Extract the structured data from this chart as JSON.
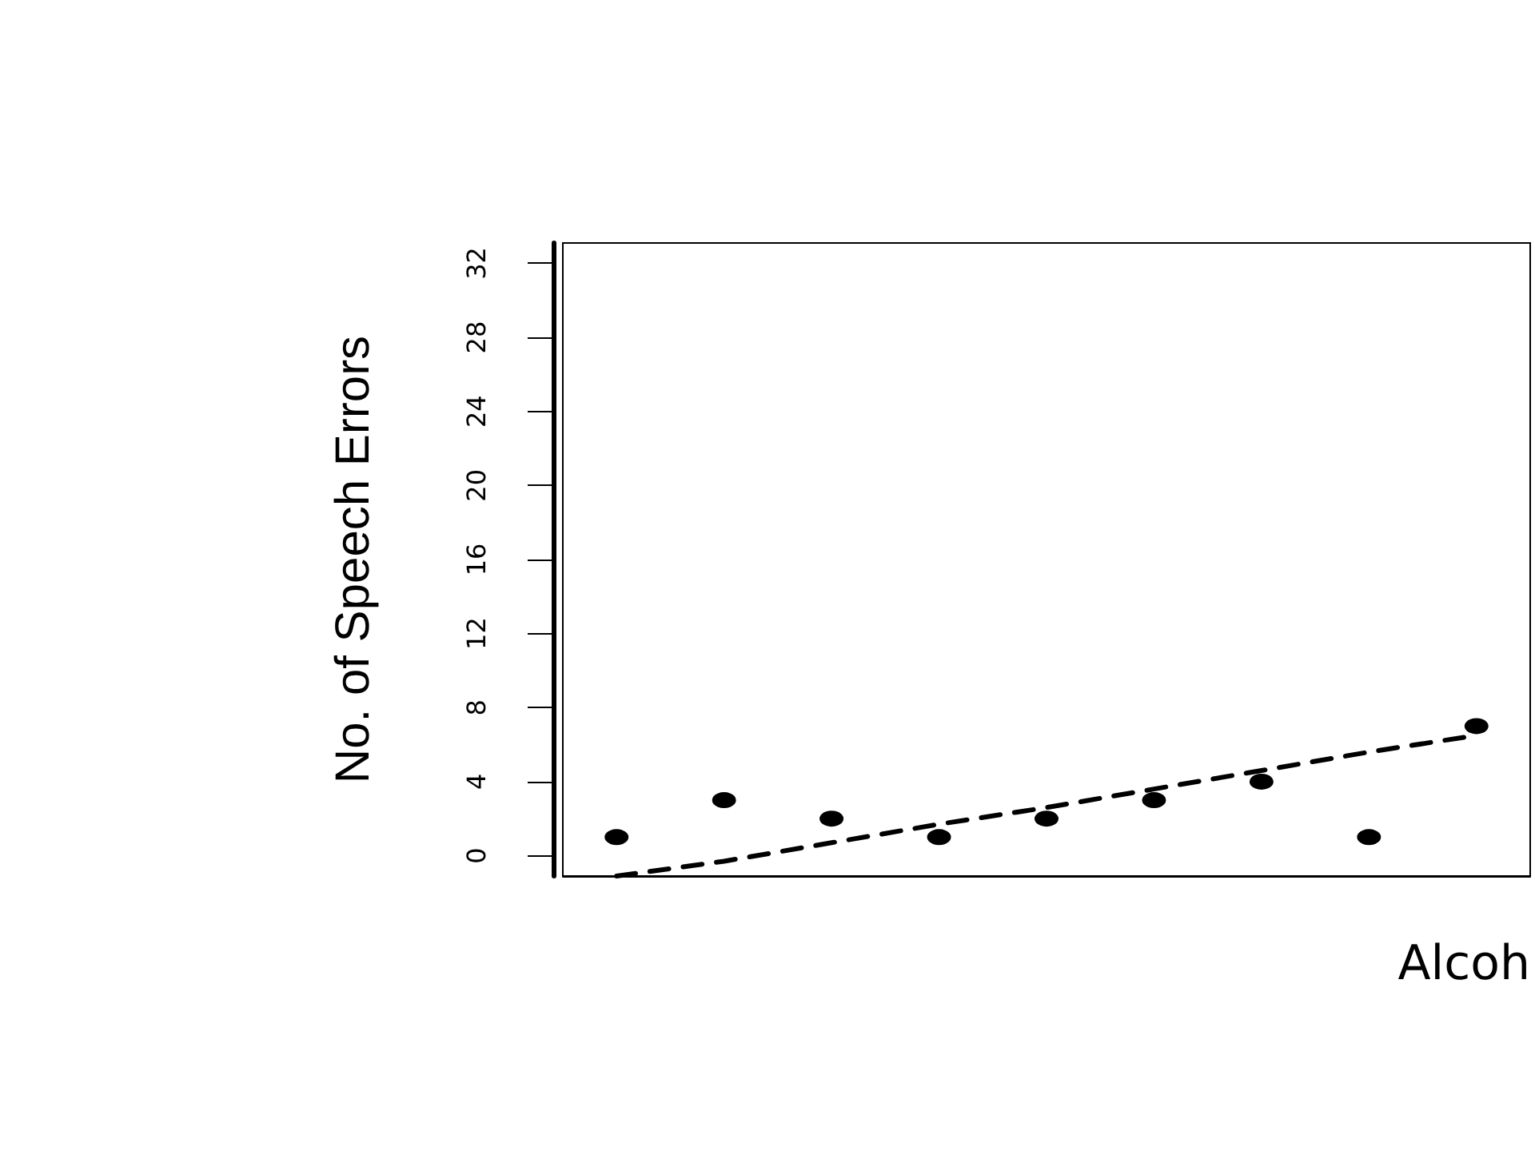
{
  "chart_data": {
    "type": "scatter",
    "xlabel": "Alcoh",
    "ylabel": "No. of Speech Errors",
    "categories": [
      null,
      null,
      null,
      null,
      null,
      null,
      null,
      null,
      null
    ],
    "series": [
      {
        "color": "#000000",
        "marker": "circle",
        "values": [
          1,
          3,
          2,
          1,
          2,
          3,
          4,
          1,
          7
        ]
      },
      {
        "type": "line",
        "color": "#000000",
        "line_style": "dashed",
        "marker": "none",
        "values": [
          -1.1,
          -0.3,
          0.7,
          1.7,
          2.6,
          3.6,
          4.6,
          5.6,
          6.5
        ]
      }
    ],
    "ylim": [
      -1.1,
      33.1
    ],
    "yticks": [
      0,
      4,
      8,
      12,
      16,
      20,
      24,
      28,
      32
    ],
    "tick_labels": "y",
    "grid": false
  }
}
